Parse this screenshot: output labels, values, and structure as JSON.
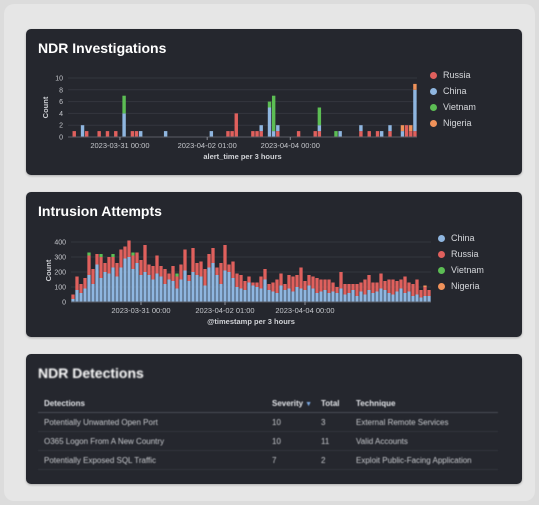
{
  "panels": {
    "ndr_investigations": {
      "title": "NDR Investigations",
      "legend": [
        {
          "label": "Russia",
          "color": "#e0605d"
        },
        {
          "label": "China",
          "color": "#8fb6e0"
        },
        {
          "label": "Vietnam",
          "color": "#5cbd54"
        },
        {
          "label": "Nigeria",
          "color": "#f0925a"
        }
      ]
    },
    "intrusion_attempts": {
      "title": "Intrusion Attempts",
      "legend": [
        {
          "label": "China",
          "color": "#8fb6e0"
        },
        {
          "label": "Russia",
          "color": "#e0605d"
        },
        {
          "label": "Vietnam",
          "color": "#5cbd54"
        },
        {
          "label": "Nigeria",
          "color": "#f0925a"
        }
      ]
    },
    "ndr_detections": {
      "title": "NDR Detections",
      "columns": [
        "Detections",
        "Severity",
        "Total",
        "Technique"
      ],
      "sort_icon": "sort-desc-icon",
      "rows": [
        [
          "Potentially Unwanted Open Port",
          "10",
          "3",
          "External Remote Services"
        ],
        [
          "O365 Logon From A New Country",
          "10",
          "11",
          "Valid Accounts"
        ],
        [
          "Potentially Exposed SQL Traffic",
          "7",
          "2",
          "Exploit Public-Facing Application"
        ]
      ]
    }
  },
  "chart_data": [
    {
      "type": "bar",
      "stacked": true,
      "ylabel": "Count",
      "xlabel": "alert_time per 3 hours",
      "ylim": [
        0,
        10
      ],
      "yticks": [
        0,
        2,
        4,
        6,
        8,
        10
      ],
      "xticks": [
        "2023-03-31 00:00",
        "2023-04-02 01:00",
        "2023-04-04 00:00"
      ],
      "x_tick_bar_index": [
        12,
        33,
        53
      ],
      "legend_position": "right",
      "series": [
        {
          "name": "Russia",
          "values": [
            0,
            1,
            0,
            0,
            1,
            0,
            0,
            1,
            0,
            1,
            0,
            1,
            0,
            0,
            0,
            1,
            1,
            0,
            0,
            0,
            0,
            0,
            0,
            0,
            0,
            0,
            0,
            0,
            0,
            0,
            0,
            0,
            0,
            0,
            0,
            0,
            0,
            0,
            1,
            1,
            4,
            0,
            0,
            0,
            1,
            1,
            1,
            0,
            0,
            0,
            1,
            0,
            0,
            0,
            0,
            1,
            0,
            0,
            0,
            1,
            1,
            0,
            0,
            0,
            0,
            0,
            0,
            0,
            0,
            0,
            1,
            0,
            1,
            0,
            1,
            0,
            0,
            1,
            0,
            0,
            0,
            2,
            1,
            1
          ]
        },
        {
          "name": "China",
          "values": [
            0,
            0,
            0,
            2,
            0,
            0,
            0,
            0,
            0,
            0,
            0,
            0,
            0,
            4,
            0,
            0,
            0,
            1,
            0,
            0,
            0,
            0,
            0,
            1,
            0,
            0,
            0,
            0,
            0,
            0,
            0,
            0,
            0,
            0,
            1,
            0,
            0,
            0,
            0,
            0,
            0,
            0,
            0,
            0,
            0,
            0,
            1,
            0,
            5,
            1,
            1,
            0,
            0,
            0,
            0,
            0,
            0,
            0,
            0,
            0,
            1,
            0,
            0,
            0,
            0,
            1,
            0,
            0,
            0,
            0,
            1,
            0,
            0,
            0,
            0,
            1,
            0,
            1,
            0,
            0,
            1,
            0,
            0,
            7
          ]
        },
        {
          "name": "Vietnam",
          "values": [
            0,
            0,
            0,
            0,
            0,
            0,
            0,
            0,
            0,
            0,
            0,
            0,
            0,
            3,
            0,
            0,
            0,
            0,
            0,
            0,
            0,
            0,
            0,
            0,
            0,
            0,
            0,
            0,
            0,
            0,
            0,
            0,
            0,
            0,
            0,
            0,
            0,
            0,
            0,
            0,
            0,
            0,
            0,
            0,
            0,
            0,
            0,
            0,
            1,
            6,
            0,
            0,
            0,
            0,
            0,
            0,
            0,
            0,
            0,
            0,
            3,
            0,
            0,
            0,
            1,
            0,
            0,
            0,
            0,
            0,
            0,
            0,
            0,
            0,
            0,
            0,
            0,
            0,
            0,
            0,
            0,
            0,
            0,
            0
          ]
        },
        {
          "name": "Nigeria",
          "values": [
            0,
            0,
            0,
            0,
            0,
            0,
            0,
            0,
            0,
            0,
            0,
            0,
            0,
            0,
            0,
            0,
            0,
            0,
            0,
            0,
            0,
            0,
            0,
            0,
            0,
            0,
            0,
            0,
            0,
            0,
            0,
            0,
            0,
            0,
            0,
            0,
            0,
            0,
            0,
            0,
            0,
            0,
            0,
            0,
            0,
            0,
            0,
            0,
            0,
            0,
            0,
            0,
            0,
            0,
            0,
            0,
            0,
            0,
            0,
            0,
            0,
            0,
            0,
            0,
            0,
            0,
            0,
            0,
            0,
            0,
            0,
            0,
            0,
            0,
            0,
            0,
            0,
            0,
            0,
            0,
            1,
            0,
            1,
            1
          ]
        }
      ]
    },
    {
      "type": "bar",
      "stacked": true,
      "ylabel": "Count",
      "xlabel": "@timestamp per 3 hours",
      "ylim": [
        0,
        420
      ],
      "yticks": [
        0,
        100,
        200,
        300,
        400
      ],
      "xticks": [
        "2023-03-31 00:00",
        "2023-04-02 01:00",
        "2023-04-04 00:00"
      ],
      "x_tick_bar_index": [
        17,
        38,
        58
      ],
      "legend_position": "right",
      "series": [
        {
          "name": "China",
          "values": [
            20,
            80,
            60,
            90,
            180,
            120,
            250,
            160,
            200,
            190,
            230,
            170,
            230,
            290,
            300,
            220,
            260,
            180,
            200,
            180,
            150,
            190,
            170,
            120,
            150,
            140,
            90,
            150,
            210,
            140,
            200,
            180,
            170,
            110,
            230,
            260,
            180,
            120,
            210,
            200,
            160,
            100,
            90,
            80,
            130,
            110,
            100,
            90,
            150,
            80,
            70,
            60,
            110,
            80,
            90,
            70,
            100,
            90,
            80,
            110,
            90,
            60,
            70,
            80,
            60,
            70,
            60,
            90,
            50,
            60,
            80,
            40,
            70,
            50,
            80,
            60,
            70,
            90,
            80,
            60,
            50,
            70,
            90,
            60,
            70,
            40,
            50,
            30,
            40,
            40
          ]
        },
        {
          "name": "Russia",
          "values": [
            30,
            90,
            60,
            70,
            130,
            100,
            70,
            140,
            60,
            110,
            70,
            90,
            120,
            80,
            110,
            90,
            70,
            100,
            180,
            70,
            90,
            120,
            70,
            100,
            40,
            100,
            80,
            100,
            140,
            40,
            160,
            80,
            100,
            110,
            90,
            100,
            50,
            140,
            170,
            50,
            110,
            90,
            90,
            60,
            40,
            20,
            30,
            80,
            70,
            40,
            60,
            90,
            80,
            40,
            90,
            100,
            80,
            140,
            60,
            70,
            80,
            100,
            80,
            70,
            90,
            60,
            40,
            110,
            70,
            60,
            40,
            80,
            60,
            100,
            100,
            70,
            60,
            100,
            60,
            90,
            100,
            70,
            60,
            110,
            60,
            80,
            100,
            50,
            60,
            40
          ]
        },
        {
          "name": "Vietnam",
          "values": [
            0,
            0,
            0,
            0,
            20,
            0,
            0,
            20,
            0,
            0,
            20,
            0,
            0,
            0,
            0,
            20,
            0,
            0,
            0,
            0,
            0,
            0,
            0,
            0,
            0,
            0,
            20,
            0,
            0,
            0,
            0,
            0,
            0,
            0,
            0,
            0,
            0,
            0,
            0,
            0,
            0,
            0,
            0,
            0,
            0,
            0,
            0,
            0,
            0,
            0,
            0,
            0,
            0,
            0,
            0,
            0,
            0,
            0,
            0,
            0,
            0,
            0,
            0,
            0,
            0,
            0,
            0,
            0,
            0,
            0,
            0,
            0,
            0,
            0,
            0,
            0,
            0,
            0,
            0,
            0,
            0,
            0,
            0,
            0,
            0,
            0,
            0,
            0,
            0,
            0
          ]
        },
        {
          "name": "Nigeria",
          "values": [
            0,
            0,
            0,
            0,
            0,
            0,
            0,
            0,
            0,
            0,
            0,
            0,
            0,
            0,
            0,
            0,
            0,
            0,
            0,
            0,
            0,
            0,
            0,
            0,
            0,
            0,
            0,
            0,
            0,
            0,
            0,
            0,
            0,
            0,
            0,
            0,
            0,
            0,
            0,
            0,
            0,
            0,
            0,
            0,
            0,
            0,
            0,
            0,
            0,
            0,
            0,
            0,
            0,
            0,
            0,
            0,
            0,
            0,
            0,
            0,
            0,
            0,
            0,
            0,
            0,
            0,
            0,
            0,
            0,
            0,
            0,
            0,
            0,
            0,
            0,
            0,
            0,
            0,
            0,
            0,
            0,
            0,
            0,
            0,
            0,
            0,
            0,
            0,
            10,
            0
          ]
        }
      ]
    }
  ]
}
